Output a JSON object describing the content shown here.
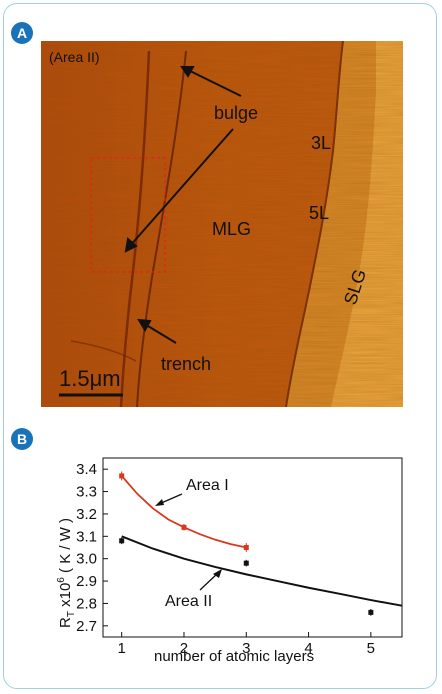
{
  "panel_a": {
    "badge": "A",
    "area_label": "(Area II)",
    "labels": {
      "bulge": "bulge",
      "l3": "3L",
      "l5": "5L",
      "mlg": "MLG",
      "slg": "SLG",
      "trench": "trench"
    },
    "scalebar": "1.5μm"
  },
  "panel_b": {
    "badge": "B",
    "ylabel_main": "R",
    "ylabel_sub": "T",
    "ylabel_rest": " x10",
    "ylabel_sup": "6",
    "ylabel_unit": " ( K / W )",
    "xlabel": "number of atomic layers",
    "series_labels": {
      "area1": "Area I",
      "area2": "Area II"
    }
  },
  "chart_data": {
    "type": "line",
    "xlabel": "number of atomic layers",
    "ylabel": "RT x10^6 ( K / W )",
    "xlim": [
      0.7,
      5.5
    ],
    "ylim": [
      2.65,
      3.45
    ],
    "xticks": [
      "1",
      "2",
      "3",
      "4",
      "5"
    ],
    "yticks": [
      "2.7",
      "2.8",
      "2.9",
      "3.0",
      "3.1",
      "3.2",
      "3.3",
      "3.4"
    ],
    "series": [
      {
        "name": "Area I",
        "color": "#d9381e",
        "marker": "square",
        "x": [
          1,
          2,
          3
        ],
        "y": [
          3.37,
          3.14,
          3.05
        ],
        "err": [
          0.02,
          0.015,
          0.02
        ]
      },
      {
        "name": "Area II",
        "color": "#111111",
        "marker": "square",
        "x": [
          1,
          3,
          5
        ],
        "y": [
          3.08,
          2.98,
          2.76
        ],
        "err": [
          0.015,
          0.015,
          0.015
        ]
      }
    ],
    "fits": [
      {
        "series": "Area I",
        "color": "#d9381e",
        "x": [
          1,
          1.25,
          1.5,
          1.75,
          2,
          2.25,
          2.5,
          2.75,
          3
        ],
        "y": [
          3.37,
          3.29,
          3.225,
          3.175,
          3.14,
          3.11,
          3.085,
          3.065,
          3.05
        ]
      },
      {
        "series": "Area II",
        "color": "#111111",
        "x": [
          1,
          1.5,
          2,
          2.5,
          3,
          3.5,
          4,
          4.5,
          5,
          5.5
        ],
        "y": [
          3.1,
          3.045,
          3.0,
          2.963,
          2.93,
          2.9,
          2.87,
          2.843,
          2.815,
          2.79
        ]
      }
    ]
  }
}
